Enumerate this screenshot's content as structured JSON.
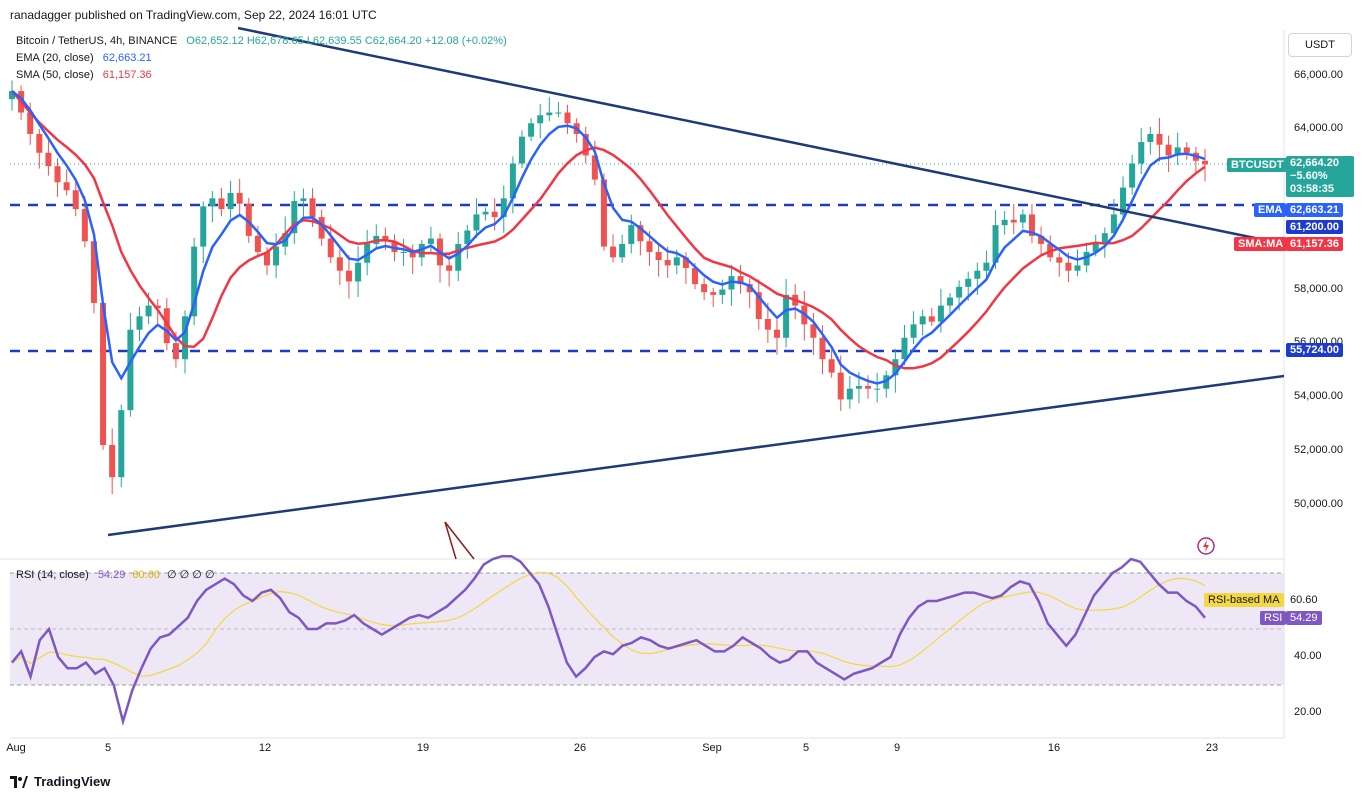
{
  "header": {
    "publisher": "ranadagger published on TradingView.com, Sep 22, 2024 16:01 UTC"
  },
  "legend": {
    "symbol": "Bitcoin / TetherUS, 4h, BINANCE",
    "ohlc": "O62,652.12 H62,678.65 L62,639.55 C62,664.20 +12.08 (+0.02%)",
    "ema_label": "EMA (20, close)",
    "ema_value": "62,663.21",
    "sma_label": "SMA (50, close)",
    "sma_value": "61,157.36",
    "rsi_label": "RSI (14, close)",
    "rsi_value": "54.29",
    "rsi_ma_value": "60.60",
    "rsi_extra": "∅ ∅ ∅ ∅"
  },
  "currency_button": "USDT",
  "price_tags": {
    "btc_label": "BTCUSDT",
    "btc_price": "62,664.20",
    "btc_change": "−5.60%",
    "btc_timer": "03:58:35",
    "ema_label": "EMA",
    "ema_price": "62,663.21",
    "level_61200": "61,200.00",
    "sma_label": "SMA:MA",
    "sma_price": "61,157.36",
    "level_55724": "55,724.00",
    "rsi_ma_label": "RSI-based MA",
    "rsi_ma_price": "60.60",
    "rsi_label": "RSI",
    "rsi_price": "54.29"
  },
  "logo": "TradingView",
  "colors": {
    "up": "#26a69a",
    "down": "#ef5350",
    "ema": "#2962ff",
    "sma": "#f23645",
    "trend": "#1e3a78",
    "rsi": "#7e57c2",
    "rsi_ma": "#f5d742",
    "level": "#1e3acb"
  },
  "chart_data": [
    {
      "type": "candlestick",
      "symbol": "BTCUSDT",
      "timeframe": "4h",
      "x_ticks": [
        "Aug",
        "5",
        "12",
        "19",
        "26",
        "Sep",
        "5",
        "9",
        "16",
        "23"
      ],
      "y_ticks": [
        "50,000.00",
        "52,000.00",
        "54,000.00",
        "56,000.00",
        "58,000.00",
        "60,000.00",
        "62,000.00",
        "64,000.00",
        "66,000.00"
      ],
      "ylim": [
        48000,
        67000
      ],
      "horizontal_levels": [
        61200,
        55724
      ],
      "close_path": [
        65400,
        64600,
        63800,
        63100,
        62600,
        62000,
        61700,
        61000,
        59800,
        57500,
        52200,
        51000,
        53500,
        56500,
        57000,
        57400,
        57300,
        56000,
        55400,
        57000,
        59600,
        61100,
        61400,
        61000,
        61600,
        61200,
        60000,
        59400,
        58900,
        59600,
        60100,
        61300,
        61400,
        60700,
        59900,
        59200,
        58700,
        58300,
        59000,
        59700,
        60000,
        59800,
        59400,
        59400,
        59200,
        59700,
        59900,
        58900,
        58700,
        59700,
        60200,
        60800,
        60900,
        60700,
        61400,
        62700,
        63700,
        64200,
        64500,
        64600,
        64600,
        64200,
        63800,
        63000,
        62100,
        59600,
        59200,
        59700,
        60400,
        59800,
        59400,
        59100,
        58900,
        59200,
        58800,
        58200,
        57900,
        57800,
        58000,
        58500,
        58200,
        57900,
        56900,
        56500,
        56200,
        57800,
        57400,
        56700,
        56200,
        55400,
        54900,
        53900,
        54300,
        54400,
        54300,
        54300,
        54800,
        55400,
        56200,
        56700,
        57000,
        56800,
        57400,
        57700,
        58100,
        58400,
        58700,
        59000,
        60400,
        60600,
        60500,
        60800,
        60000,
        59700,
        59200,
        59000,
        58700,
        58900,
        59400,
        59700,
        60100,
        60800,
        61800,
        62700,
        63500,
        63800,
        63400,
        63000,
        63300,
        63100,
        62800,
        62664
      ]
    },
    {
      "type": "line",
      "indicator": "RSI (14, close)",
      "y_ticks": [
        "20.00",
        "40.00"
      ],
      "ylim": [
        12,
        82
      ],
      "levels": [
        70,
        50,
        30
      ],
      "values": [
        38,
        42,
        33,
        46,
        50,
        40,
        36,
        36,
        38,
        34,
        36,
        30,
        17,
        28,
        36,
        43,
        47,
        48,
        51,
        54,
        60,
        64,
        66,
        68,
        66,
        62,
        60,
        63,
        64,
        61,
        56,
        54,
        50,
        50,
        52,
        52,
        53,
        55,
        52,
        50,
        48,
        50,
        52,
        54,
        55,
        54,
        56,
        58,
        61,
        64,
        68,
        73,
        75,
        76,
        76,
        74,
        70,
        66,
        58,
        48,
        38,
        33,
        36,
        40,
        42,
        41,
        44,
        45,
        47,
        46,
        44,
        43,
        44,
        45,
        46,
        44,
        42,
        42,
        44,
        47,
        45,
        43,
        40,
        38,
        39,
        42,
        42,
        38,
        36,
        34,
        32,
        34,
        35,
        36,
        38,
        40,
        48,
        54,
        58,
        60,
        60,
        61,
        62,
        63,
        63,
        62,
        61,
        62,
        65,
        67,
        66,
        60,
        52,
        48,
        44,
        48,
        55,
        62,
        66,
        70,
        72,
        75,
        74,
        70,
        66,
        63,
        63,
        60,
        58,
        54
      ]
    }
  ]
}
